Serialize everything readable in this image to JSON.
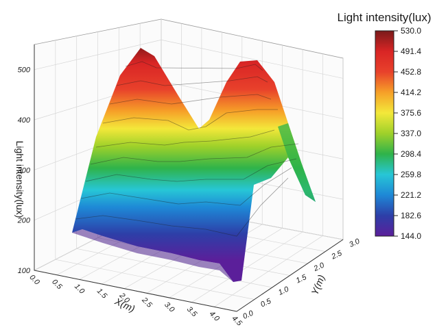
{
  "chart_data": {
    "type": "surface3d",
    "title": "",
    "xlabel": "X(m)",
    "ylabel": "Y(m)",
    "zlabel": "Light intensity(lux)",
    "x_ticks": [
      "0.0",
      "0.5",
      "1.0",
      "1.5",
      "2.0",
      "2.5",
      "3.0",
      "3.5",
      "4.0",
      "4.5"
    ],
    "y_ticks": [
      "0.0",
      "0.5",
      "1.0",
      "1.5",
      "2.0",
      "2.5",
      "3.0"
    ],
    "z_ticks": [
      "100",
      "200",
      "300",
      "400",
      "500"
    ],
    "xlim": [
      0,
      4.5
    ],
    "ylim": [
      0,
      3
    ],
    "zlim": [
      100,
      550
    ],
    "grid": true,
    "colorbar": {
      "title": "Light intensity(lux)",
      "ticks": [
        "530.0",
        "491.4",
        "452.8",
        "414.2",
        "375.6",
        "337.0",
        "298.4",
        "259.8",
        "221.2",
        "182.6",
        "144.0"
      ],
      "min": 144.0,
      "max": 530.0,
      "colors": [
        "#5b1f9a",
        "#2d3fa8",
        "#1e88d6",
        "#27c6d6",
        "#2fb34a",
        "#9fd12a",
        "#f3e83a",
        "#f6a028",
        "#e8412b",
        "#d92525",
        "#7a1a1a"
      ]
    },
    "surface_profile": {
      "x": [
        0.0,
        0.5,
        1.0,
        1.5,
        2.0,
        2.5,
        3.0,
        3.5,
        4.0,
        4.5
      ],
      "z_back_edge": [
        290,
        420,
        545,
        470,
        360,
        470,
        525,
        420,
        320,
        250
      ],
      "z_front_edge": [
        185,
        175,
        165,
        160,
        150,
        150,
        145,
        130,
        150,
        180
      ]
    }
  }
}
